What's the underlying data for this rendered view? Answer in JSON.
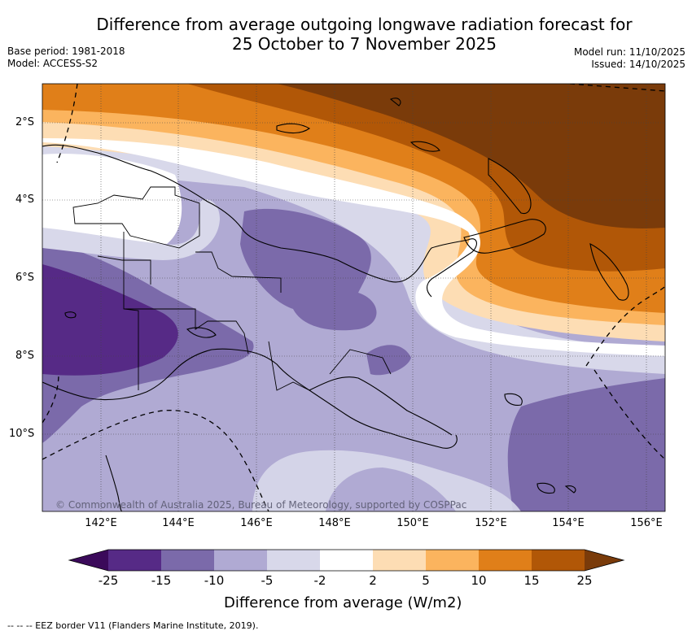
{
  "header": {
    "title_line1": "Difference from average outgoing longwave radiation forecast for",
    "title_line2": "25 October to 7 November 2025",
    "base_period": "Base period: 1981-2018",
    "model": "Model: ACCESS-S2",
    "model_run": "Model run: 11/10/2025",
    "issued": "Issued: 14/10/2025"
  },
  "map": {
    "latitude_labels": [
      "2°S",
      "4°S",
      "6°S",
      "8°S",
      "10°S"
    ],
    "longitude_labels": [
      "142°E",
      "144°E",
      "146°E",
      "148°E",
      "150°E",
      "152°E",
      "154°E",
      "156°E"
    ],
    "copyright": "© Commonwealth of Australia 2025, Bureau of Meteorology, supported by COSPPac",
    "anomaly_fields": [
      {
        "region": "northeast",
        "level": "> 25",
        "color": "#7a3b0a"
      },
      {
        "region": "north-central",
        "level": "10 to 15",
        "color": "#de7f17"
      },
      {
        "region": "southwest Papua",
        "level": "-25 to -15",
        "color": "#562a86"
      },
      {
        "region": "south-central",
        "level": "-10 to -5",
        "color": "#b0aad3"
      }
    ]
  },
  "colorbar": {
    "title": "Difference from average (W/m2)",
    "ticks": [
      "-25",
      "-15",
      "-10",
      "-5",
      "-2",
      "2",
      "5",
      "10",
      "15",
      "25"
    ],
    "colors": [
      "#3b0a5a",
      "#562a86",
      "#7b6aaa",
      "#b0aad3",
      "#d8d8ea",
      "#ffffff",
      "#fdddb4",
      "#fbb45e",
      "#e07f19",
      "#b15707",
      "#7a3b0a"
    ]
  },
  "footer": {
    "legend": "--  --  -- EEZ border V11 (Flanders Marine Institute, 2019)."
  }
}
